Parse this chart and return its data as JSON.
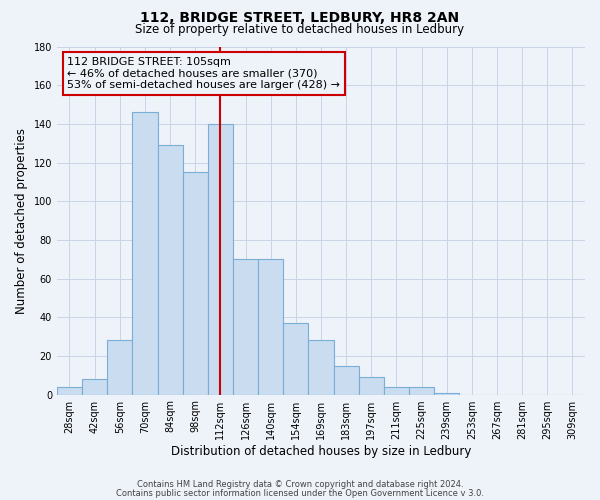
{
  "title": "112, BRIDGE STREET, LEDBURY, HR8 2AN",
  "subtitle": "Size of property relative to detached houses in Ledbury",
  "xlabel": "Distribution of detached houses by size in Ledbury",
  "ylabel": "Number of detached properties",
  "bar_labels": [
    "28sqm",
    "42sqm",
    "56sqm",
    "70sqm",
    "84sqm",
    "98sqm",
    "112sqm",
    "126sqm",
    "140sqm",
    "154sqm",
    "169sqm",
    "183sqm",
    "197sqm",
    "211sqm",
    "225sqm",
    "239sqm",
    "253sqm",
    "267sqm",
    "281sqm",
    "295sqm",
    "309sqm"
  ],
  "bar_values": [
    4,
    8,
    28,
    146,
    129,
    115,
    140,
    70,
    70,
    37,
    28,
    15,
    9,
    4,
    4,
    1,
    0,
    0,
    0,
    0,
    0
  ],
  "bar_color": "#c9dcf0",
  "bar_edge_color": "#7aaed6",
  "grid_color": "#c8d4e8",
  "vline_x": 6.0,
  "vline_color": "#cc0000",
  "annotation_title": "112 BRIDGE STREET: 105sqm",
  "annotation_line1": "← 46% of detached houses are smaller (370)",
  "annotation_line2": "53% of semi-detached houses are larger (428) →",
  "annotation_box_edge": "#cc0000",
  "ylim": [
    0,
    180
  ],
  "yticks": [
    0,
    20,
    40,
    60,
    80,
    100,
    120,
    140,
    160,
    180
  ],
  "footer1": "Contains HM Land Registry data © Crown copyright and database right 2024.",
  "footer2": "Contains public sector information licensed under the Open Government Licence v 3.0.",
  "bg_color": "#eef2f9"
}
